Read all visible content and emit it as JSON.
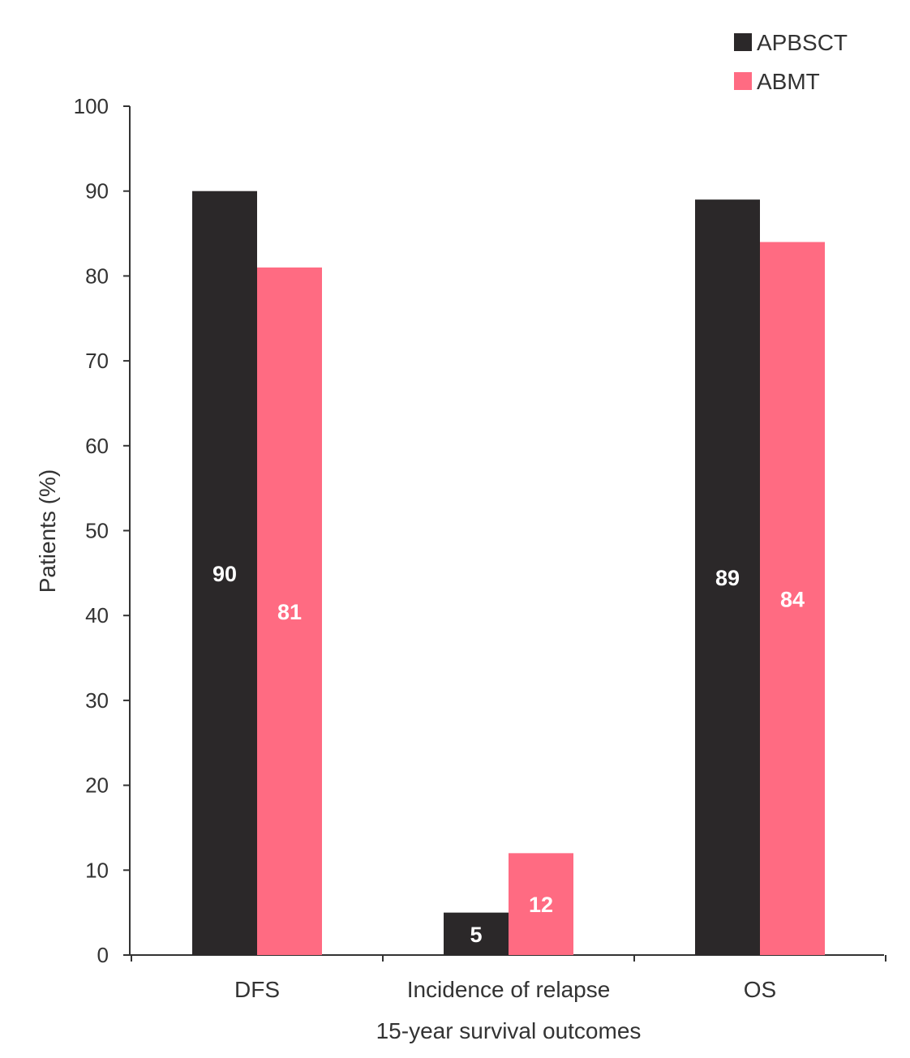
{
  "chart_data": {
    "type": "bar",
    "categories": [
      "DFS",
      "Incidence of relapse",
      "OS"
    ],
    "series": [
      {
        "name": "APBSCT",
        "values": [
          90,
          5,
          89
        ],
        "color": "#2b2829"
      },
      {
        "name": "ABMT",
        "values": [
          81,
          12,
          84
        ],
        "color": "#ff6b82"
      }
    ],
    "title": "",
    "xlabel": "15-year survival outcomes",
    "ylabel": "Patients (%)",
    "ylim": [
      0,
      100
    ],
    "yticks": [
      0,
      10,
      20,
      30,
      40,
      50,
      60,
      70,
      80,
      90,
      100
    ],
    "grid": false,
    "legend_position": "top-right",
    "data_labels": true
  }
}
